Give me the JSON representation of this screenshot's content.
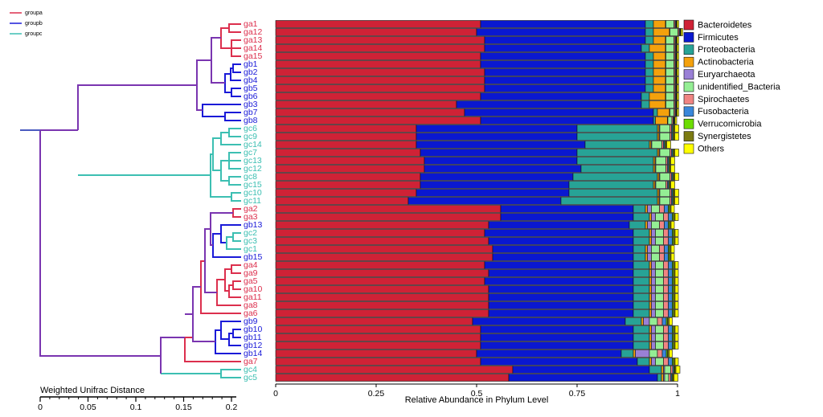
{
  "chart_data": {
    "type": "bar",
    "orientation": "horizontal",
    "stacked": true,
    "categories": [
      "ga1",
      "ga12",
      "ga13",
      "ga14",
      "ga15",
      "gb1",
      "gb2",
      "gb4",
      "gb5",
      "gb6",
      "gb3",
      "gb7",
      "gb8",
      "gc6",
      "gc9",
      "gc14",
      "gc7",
      "gc13",
      "gc12",
      "gc8",
      "gc15",
      "gc10",
      "gc11",
      "ga2",
      "ga3",
      "gb13",
      "gc2",
      "gc3",
      "gc1",
      "gb15",
      "ga4",
      "ga9",
      "ga5",
      "ga10",
      "ga11",
      "ga8",
      "ga6",
      "gb9",
      "gb10",
      "gb11",
      "gb12",
      "gb14",
      "ga7",
      "gc4",
      "gc5"
    ],
    "category_groups": [
      0,
      0,
      0,
      0,
      0,
      1,
      1,
      1,
      1,
      1,
      1,
      1,
      1,
      2,
      2,
      2,
      2,
      2,
      2,
      2,
      2,
      2,
      2,
      0,
      0,
      1,
      2,
      2,
      2,
      1,
      0,
      0,
      0,
      0,
      0,
      0,
      0,
      1,
      1,
      1,
      1,
      1,
      0,
      2,
      2
    ],
    "groups": [
      {
        "name": "groupa",
        "color": "#dc2f4d"
      },
      {
        "name": "groupb",
        "color": "#1a1ad8"
      },
      {
        "name": "groupc",
        "color": "#3cbfb2"
      }
    ],
    "series": [
      {
        "name": "Bacteroidetes",
        "color": "#cf2236",
        "values": [
          0.51,
          0.5,
          0.52,
          0.52,
          0.51,
          0.51,
          0.52,
          0.52,
          0.52,
          0.51,
          0.45,
          0.47,
          0.51,
          0.35,
          0.35,
          0.35,
          0.36,
          0.37,
          0.37,
          0.36,
          0.36,
          0.35,
          0.33,
          0.56,
          0.56,
          0.53,
          0.52,
          0.53,
          0.54,
          0.54,
          0.52,
          0.53,
          0.52,
          0.53,
          0.53,
          0.53,
          0.53,
          0.49,
          0.51,
          0.51,
          0.51,
          0.5,
          0.51,
          0.59,
          0.58
        ]
      },
      {
        "name": "Firmicutes",
        "color": "#0a18d0",
        "values": [
          0.41,
          0.42,
          0.4,
          0.39,
          0.41,
          0.41,
          0.4,
          0.4,
          0.4,
          0.4,
          0.46,
          0.47,
          0.43,
          0.4,
          0.4,
          0.42,
          0.39,
          0.38,
          0.39,
          0.38,
          0.37,
          0.38,
          0.38,
          0.33,
          0.33,
          0.35,
          0.37,
          0.36,
          0.35,
          0.35,
          0.37,
          0.36,
          0.37,
          0.36,
          0.36,
          0.36,
          0.36,
          0.38,
          0.38,
          0.38,
          0.38,
          0.36,
          0.39,
          0.34,
          0.37
        ]
      },
      {
        "name": "Proteobacteria",
        "color": "#27a396",
        "values": [
          0.02,
          0.02,
          0.02,
          0.02,
          0.02,
          0.02,
          0.02,
          0.02,
          0.02,
          0.02,
          0.02,
          0.01,
          0.005,
          0.2,
          0.2,
          0.16,
          0.2,
          0.19,
          0.18,
          0.21,
          0.21,
          0.22,
          0.24,
          0.03,
          0.04,
          0.04,
          0.04,
          0.04,
          0.03,
          0.03,
          0.04,
          0.04,
          0.04,
          0.04,
          0.04,
          0.04,
          0.04,
          0.04,
          0.04,
          0.04,
          0.04,
          0.03,
          0.03,
          0.03,
          0.01
        ]
      },
      {
        "name": "Actinobacteria",
        "color": "#f4a10c",
        "values": [
          0.03,
          0.04,
          0.03,
          0.04,
          0.03,
          0.03,
          0.03,
          0.03,
          0.03,
          0.04,
          0.04,
          0.03,
          0.03,
          0.004,
          0.004,
          0.004,
          0.004,
          0.004,
          0.004,
          0.004,
          0.004,
          0.004,
          0.004,
          0.005,
          0.005,
          0.005,
          0.005,
          0.005,
          0.005,
          0.005,
          0.005,
          0.005,
          0.005,
          0.005,
          0.005,
          0.005,
          0.005,
          0.005,
          0.005,
          0.005,
          0.005,
          0.005,
          0.005,
          0.005,
          0.005
        ]
      },
      {
        "name": "Euryarchaeota",
        "color": "#9a80d6",
        "values": [
          0.001,
          0.001,
          0.001,
          0.001,
          0.001,
          0.001,
          0.001,
          0.001,
          0.001,
          0.001,
          0.001,
          0.001,
          0.001,
          0.002,
          0.002,
          0.002,
          0.002,
          0.002,
          0.002,
          0.002,
          0.002,
          0.002,
          0.002,
          0.01,
          0.01,
          0.01,
          0.01,
          0.01,
          0.01,
          0.01,
          0.01,
          0.01,
          0.01,
          0.01,
          0.01,
          0.01,
          0.01,
          0.015,
          0.01,
          0.01,
          0.01,
          0.035,
          0.01,
          0.003,
          0.003
        ]
      },
      {
        "name": "unidentified_Bacteria",
        "color": "#94ee94",
        "values": [
          0.02,
          0.02,
          0.02,
          0.02,
          0.02,
          0.02,
          0.02,
          0.02,
          0.02,
          0.02,
          0.02,
          0.01,
          0.01,
          0.025,
          0.025,
          0.025,
          0.025,
          0.025,
          0.025,
          0.025,
          0.025,
          0.025,
          0.025,
          0.02,
          0.02,
          0.02,
          0.02,
          0.02,
          0.02,
          0.02,
          0.02,
          0.02,
          0.02,
          0.02,
          0.02,
          0.02,
          0.02,
          0.02,
          0.02,
          0.02,
          0.02,
          0.02,
          0.02,
          0.015,
          0.01
        ]
      },
      {
        "name": "Spirochaetes",
        "color": "#f08482",
        "values": [
          0.003,
          0.003,
          0.003,
          0.003,
          0.003,
          0.003,
          0.003,
          0.003,
          0.003,
          0.003,
          0.003,
          0.003,
          0.003,
          0.004,
          0.004,
          0.004,
          0.004,
          0.004,
          0.004,
          0.004,
          0.004,
          0.004,
          0.004,
          0.012,
          0.012,
          0.012,
          0.012,
          0.012,
          0.012,
          0.012,
          0.012,
          0.012,
          0.012,
          0.012,
          0.012,
          0.012,
          0.012,
          0.012,
          0.012,
          0.012,
          0.012,
          0.012,
          0.012,
          0.005,
          0.005
        ]
      },
      {
        "name": "Fusobacteria",
        "color": "#3987da",
        "values": [
          0.002,
          0.002,
          0.002,
          0.002,
          0.002,
          0.002,
          0.002,
          0.002,
          0.002,
          0.002,
          0.002,
          0.002,
          0.002,
          0.003,
          0.003,
          0.003,
          0.003,
          0.003,
          0.003,
          0.003,
          0.003,
          0.003,
          0.003,
          0.01,
          0.01,
          0.01,
          0.01,
          0.01,
          0.01,
          0.01,
          0.01,
          0.01,
          0.01,
          0.01,
          0.01,
          0.01,
          0.01,
          0.01,
          0.01,
          0.01,
          0.01,
          0.01,
          0.01,
          0.003,
          0.003
        ]
      },
      {
        "name": "Verrucomicrobia",
        "color": "#6cdc02",
        "values": [
          0.001,
          0.001,
          0.001,
          0.001,
          0.001,
          0.001,
          0.001,
          0.001,
          0.001,
          0.001,
          0.001,
          0.001,
          0.001,
          0.002,
          0.002,
          0.002,
          0.002,
          0.002,
          0.002,
          0.002,
          0.002,
          0.002,
          0.002,
          0.003,
          0.003,
          0.003,
          0.003,
          0.003,
          0.003,
          0.003,
          0.003,
          0.003,
          0.003,
          0.003,
          0.003,
          0.003,
          0.003,
          0.003,
          0.003,
          0.003,
          0.003,
          0.003,
          0.003,
          0.002,
          0.002
        ]
      },
      {
        "name": "Synergistetes",
        "color": "#7b7a12",
        "values": [
          0.002,
          0.002,
          0.002,
          0.002,
          0.002,
          0.002,
          0.002,
          0.002,
          0.002,
          0.002,
          0.002,
          0.002,
          0.002,
          0.003,
          0.003,
          0.003,
          0.003,
          0.003,
          0.003,
          0.003,
          0.003,
          0.003,
          0.003,
          0.004,
          0.004,
          0.004,
          0.004,
          0.004,
          0.004,
          0.004,
          0.004,
          0.004,
          0.004,
          0.004,
          0.004,
          0.004,
          0.004,
          0.004,
          0.004,
          0.004,
          0.004,
          0.004,
          0.004,
          0.003,
          0.003
        ]
      },
      {
        "name": "Others",
        "color": "#ffff00",
        "values": [
          0.004,
          0.004,
          0.004,
          0.004,
          0.004,
          0.004,
          0.004,
          0.004,
          0.004,
          0.004,
          0.004,
          0.004,
          0.004,
          0.01,
          0.01,
          0.01,
          0.01,
          0.01,
          0.01,
          0.01,
          0.01,
          0.01,
          0.01,
          0.008,
          0.008,
          0.008,
          0.008,
          0.008,
          0.008,
          0.008,
          0.008,
          0.008,
          0.008,
          0.008,
          0.008,
          0.008,
          0.008,
          0.008,
          0.008,
          0.008,
          0.008,
          0.008,
          0.008,
          0.01,
          0.01
        ]
      }
    ],
    "xlim": [
      0,
      1
    ],
    "xticks": [
      0,
      0.25,
      0.5,
      0.75,
      1
    ],
    "xlabel": "Relative Abundance in Phylum Level",
    "tree_axis": {
      "label": "Weighted Unifrac Distance",
      "xlim": [
        0,
        0.2
      ],
      "xticks": [
        0,
        0.05,
        0.1,
        0.15,
        0.2
      ]
    }
  }
}
